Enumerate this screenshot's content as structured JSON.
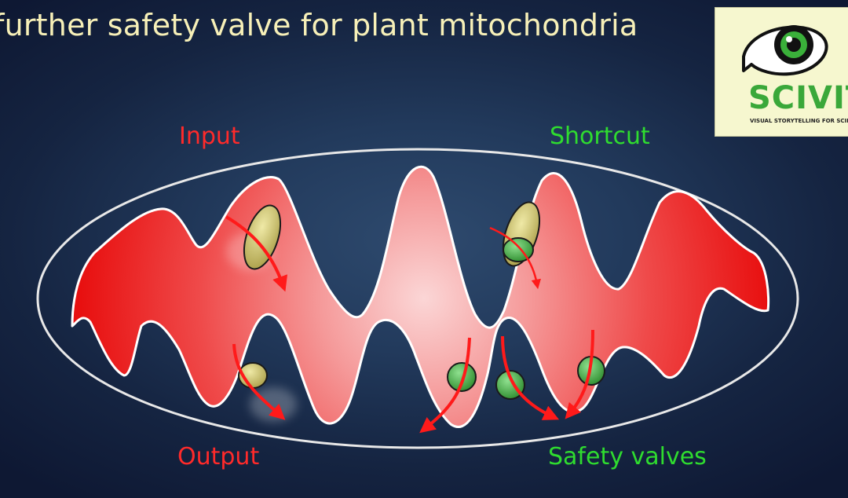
{
  "title": "further safety valve for plant mitochondria",
  "labels": {
    "input": "Input",
    "shortcut": "Shortcut",
    "output": "Output",
    "safety_valves": "Safety valves"
  },
  "logo": {
    "word": "SCIVIT",
    "tagline": "VISUAL STORYTELLING FOR SCIENCE",
    "icon": "eye-icon"
  },
  "colors": {
    "background": "#1c2f50",
    "title": "#f7f0b8",
    "input_output": "#ff2a2a",
    "shortcut_safety": "#2fdc2f",
    "membrane_fill": "#f03030",
    "outer_membrane": "#e8e8e8",
    "yellow_protein": "#c8c060",
    "green_protein": "#4caa4c"
  }
}
